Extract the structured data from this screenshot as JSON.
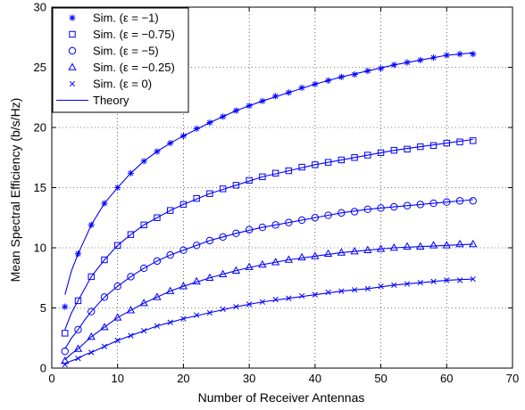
{
  "chart_data": {
    "type": "line",
    "title": "",
    "xlabel": "Number of Receiver Antennas",
    "ylabel": "Mean Spectral Efficiency (b/s/Hz)",
    "xlim": [
      0,
      70
    ],
    "ylim": [
      0,
      30
    ],
    "xticks": [
      0,
      10,
      20,
      30,
      40,
      50,
      60,
      70
    ],
    "yticks": [
      0,
      5,
      10,
      15,
      20,
      25,
      30
    ],
    "grid": "dotted",
    "legend_position": "top-left",
    "color": "#0000ff",
    "x": [
      2,
      4,
      6,
      8,
      10,
      12,
      14,
      16,
      18,
      20,
      22,
      24,
      26,
      28,
      30,
      32,
      34,
      36,
      38,
      40,
      42,
      44,
      46,
      48,
      50,
      52,
      54,
      56,
      58,
      60,
      62,
      64
    ],
    "series": [
      {
        "name": "Sim. (ε = −1)",
        "marker": "asterisk",
        "values": [
          5.1,
          9.5,
          11.9,
          13.7,
          15.0,
          16.2,
          17.2,
          18.0,
          18.7,
          19.3,
          19.9,
          20.4,
          20.9,
          21.4,
          21.8,
          22.2,
          22.6,
          22.9,
          23.3,
          23.6,
          23.9,
          24.2,
          24.4,
          24.7,
          24.9,
          25.2,
          25.4,
          25.6,
          25.8,
          26.0,
          26.1,
          26.1
        ]
      },
      {
        "name": "Sim. (ε = −0.75)",
        "marker": "square",
        "values": [
          2.9,
          5.6,
          7.6,
          9.0,
          10.2,
          11.1,
          11.9,
          12.5,
          13.1,
          13.6,
          14.1,
          14.5,
          14.9,
          15.2,
          15.6,
          15.9,
          16.2,
          16.4,
          16.7,
          16.9,
          17.1,
          17.3,
          17.5,
          17.7,
          17.9,
          18.1,
          18.2,
          18.4,
          18.5,
          18.7,
          18.8,
          18.9
        ]
      },
      {
        "name": "Sim. (ε = −5)",
        "marker": "circle",
        "values": [
          1.4,
          3.2,
          4.7,
          5.9,
          6.8,
          7.6,
          8.3,
          8.9,
          9.4,
          9.8,
          10.2,
          10.6,
          10.9,
          11.2,
          11.5,
          11.7,
          11.9,
          12.1,
          12.3,
          12.5,
          12.7,
          12.9,
          13.0,
          13.2,
          13.3,
          13.4,
          13.5,
          13.6,
          13.7,
          13.8,
          13.9,
          13.9
        ]
      },
      {
        "name": "Sim. (ε = −0.25)",
        "marker": "triangle",
        "values": [
          0.6,
          1.6,
          2.6,
          3.4,
          4.2,
          4.8,
          5.4,
          5.9,
          6.4,
          6.8,
          7.2,
          7.5,
          7.8,
          8.1,
          8.4,
          8.6,
          8.8,
          9.0,
          9.2,
          9.3,
          9.5,
          9.6,
          9.7,
          9.8,
          9.9,
          10.0,
          10.1,
          10.1,
          10.2,
          10.2,
          10.3,
          10.3
        ]
      },
      {
        "name": "Sim. (ε = 0)",
        "marker": "x",
        "values": [
          0.3,
          0.8,
          1.3,
          1.8,
          2.3,
          2.7,
          3.1,
          3.5,
          3.8,
          4.1,
          4.4,
          4.6,
          4.9,
          5.1,
          5.3,
          5.5,
          5.7,
          5.8,
          6.0,
          6.1,
          6.3,
          6.4,
          6.5,
          6.6,
          6.8,
          6.9,
          7.0,
          7.1,
          7.2,
          7.3,
          7.3,
          7.4
        ]
      }
    ],
    "theory": {
      "name": "Theory",
      "x": [
        2,
        3,
        4,
        5,
        6,
        8,
        10,
        12,
        14,
        16,
        18,
        20,
        24,
        28,
        32,
        36,
        40,
        44,
        48,
        52,
        56,
        60,
        64
      ],
      "curves": [
        [
          6.1,
          8.1,
          9.5,
          10.7,
          11.9,
          13.7,
          15.0,
          16.2,
          17.2,
          18.0,
          18.7,
          19.3,
          20.4,
          21.4,
          22.2,
          22.9,
          23.6,
          24.2,
          24.7,
          25.2,
          25.6,
          26.0,
          26.2
        ],
        [
          3.2,
          4.6,
          5.6,
          6.6,
          7.6,
          9.0,
          10.2,
          11.1,
          11.9,
          12.5,
          13.1,
          13.6,
          14.5,
          15.2,
          15.9,
          16.4,
          16.9,
          17.3,
          17.7,
          18.1,
          18.4,
          18.7,
          19.0
        ],
        [
          1.6,
          2.5,
          3.2,
          4.0,
          4.7,
          5.9,
          6.8,
          7.6,
          8.3,
          8.9,
          9.4,
          9.8,
          10.6,
          11.2,
          11.7,
          12.1,
          12.5,
          12.9,
          13.2,
          13.4,
          13.6,
          13.8,
          14.0
        ],
        [
          0.7,
          1.2,
          1.6,
          2.1,
          2.6,
          3.4,
          4.2,
          4.8,
          5.4,
          5.9,
          6.4,
          6.8,
          7.5,
          8.1,
          8.6,
          9.0,
          9.3,
          9.6,
          9.8,
          10.0,
          10.1,
          10.2,
          10.3
        ],
        [
          0.4,
          0.6,
          0.8,
          1.1,
          1.3,
          1.8,
          2.3,
          2.7,
          3.1,
          3.5,
          3.8,
          4.1,
          4.6,
          5.1,
          5.5,
          5.8,
          6.1,
          6.4,
          6.6,
          6.9,
          7.1,
          7.3,
          7.4
        ]
      ]
    }
  }
}
